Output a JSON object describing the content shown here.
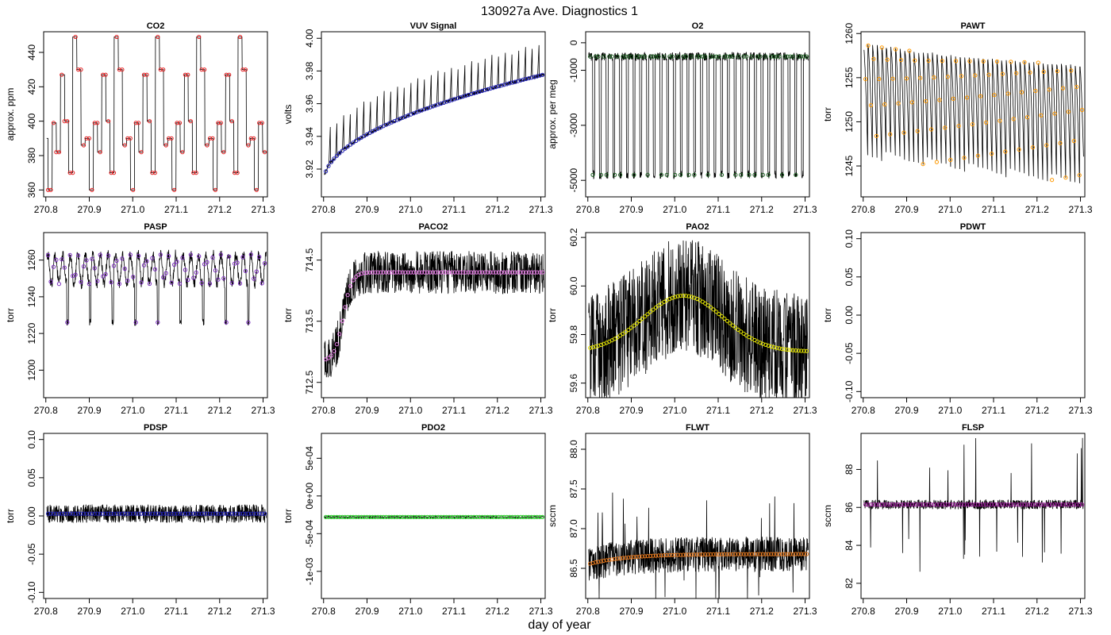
{
  "figure": {
    "title": "130927a   Ave. Diagnostics 1",
    "xlabel": "day of year"
  },
  "chart_data": [
    {
      "type": "line",
      "title": "CO2",
      "ylabel": "approx. ppm",
      "xlim": [
        270.795,
        271.31
      ],
      "ylim": [
        356,
        452
      ],
      "xticks": [
        270.8,
        270.9,
        271.0,
        271.1,
        271.2,
        271.3
      ],
      "xtick_labels": [
        "270.8",
        "270.9",
        "271.0",
        "271.1",
        "271.2",
        "271.3"
      ],
      "yticks": [
        360,
        380,
        400,
        420,
        440
      ],
      "ytick_labels": [
        "360",
        "380",
        "400",
        "420",
        "440"
      ],
      "marker_color": "#e41a1c",
      "pattern": "step",
      "levels": [
        360,
        399,
        382,
        427,
        400,
        370,
        449,
        430,
        386,
        390
      ],
      "noise": 0,
      "spikes": 0
    },
    {
      "type": "line",
      "title": "VUV Signal",
      "ylabel": "volts",
      "xlim": [
        270.795,
        271.31
      ],
      "ylim": [
        3.903,
        4.004
      ],
      "xticks": [
        270.8,
        270.9,
        271.0,
        271.1,
        271.2,
        271.3
      ],
      "xtick_labels": [
        "270.8",
        "270.9",
        "271.0",
        "271.1",
        "271.2",
        "271.3"
      ],
      "yticks": [
        3.92,
        3.94,
        3.96,
        3.98,
        4.0
      ],
      "ytick_labels": [
        "3.92",
        "3.94",
        "3.96",
        "3.98",
        "4.00"
      ],
      "marker_color": "#1f1fb4",
      "pattern": "trend",
      "base": [
        3.912,
        3.978
      ],
      "upper": [
        3.935,
        3.998
      ],
      "noise": 0.002,
      "spikes": 0
    },
    {
      "type": "line",
      "title": "O2",
      "ylabel": "approx. per meg",
      "xlim": [
        270.795,
        271.31
      ],
      "ylim": [
        -5600,
        400
      ],
      "xticks": [
        270.8,
        270.9,
        271.0,
        271.1,
        271.2,
        271.3
      ],
      "xtick_labels": [
        "270.8",
        "270.9",
        "271.0",
        "271.1",
        "271.2",
        "271.3"
      ],
      "yticks": [
        -5000,
        -3000,
        -1000,
        0
      ],
      "ytick_labels": [
        "-5000",
        "-3000",
        "-1000",
        "0"
      ],
      "marker_color": "#1b5e20",
      "pattern": "switch",
      "high": -500,
      "low": -4800,
      "noise": 150,
      "spikes": 0
    },
    {
      "type": "line",
      "title": "PAWT",
      "ylabel": "torr",
      "xlim": [
        270.795,
        271.31
      ],
      "ylim": [
        1241.5,
        1260.2
      ],
      "xticks": [
        270.8,
        270.9,
        271.0,
        271.1,
        271.2,
        271.3
      ],
      "xtick_labels": [
        "270.8",
        "270.9",
        "271.0",
        "271.1",
        "271.2",
        "271.3"
      ],
      "yticks": [
        1245,
        1250,
        1255,
        1260
      ],
      "ytick_labels": [
        "1245",
        "1250",
        "1255",
        "1260"
      ],
      "marker_color": "#ff9900",
      "pattern": "sawtooth",
      "top": 1257.5,
      "bottom_start": 1246,
      "bottom_end": 1242.5,
      "noise": 0.3,
      "spikes": 0
    },
    {
      "type": "line",
      "title": "PASP",
      "ylabel": "torr",
      "xlim": [
        270.795,
        271.31
      ],
      "ylim": [
        1185,
        1275
      ],
      "xticks": [
        270.8,
        270.9,
        271.0,
        271.1,
        271.2,
        271.3
      ],
      "xtick_labels": [
        "270.8",
        "270.9",
        "271.0",
        "271.1",
        "271.2",
        "271.3"
      ],
      "yticks": [
        1200,
        1220,
        1240,
        1260
      ],
      "ytick_labels": [
        "1200",
        "1220",
        "1240",
        "1260"
      ],
      "marker_color": "#7b2cbf",
      "pattern": "periodic",
      "base": 1255,
      "amp": 8,
      "dip": 1226,
      "noise": 1.5,
      "spikes": 0
    },
    {
      "type": "line",
      "title": "PACO2",
      "ylabel": "torr",
      "xlim": [
        270.795,
        271.31
      ],
      "ylim": [
        712.25,
        714.95
      ],
      "xticks": [
        270.8,
        270.9,
        271.0,
        271.1,
        271.2,
        271.3
      ],
      "xtick_labels": [
        "270.8",
        "270.9",
        "271.0",
        "271.1",
        "271.2",
        "271.3"
      ],
      "yticks": [
        712.5,
        713.5,
        714.5
      ],
      "ytick_labels": [
        "712.5",
        "713.5",
        "714.5"
      ],
      "marker_color": "#e87ee8",
      "pattern": "rise",
      "start": 712.85,
      "end": 714.3,
      "noise": 0.35,
      "spikes": 0
    },
    {
      "type": "line",
      "title": "PAO2",
      "ylabel": "torr",
      "xlim": [
        270.795,
        271.31
      ],
      "ylim": [
        59.54,
        60.22
      ],
      "xticks": [
        270.8,
        270.9,
        271.0,
        271.1,
        271.2,
        271.3
      ],
      "xtick_labels": [
        "270.8",
        "270.9",
        "271.0",
        "271.1",
        "271.2",
        "271.3"
      ],
      "yticks": [
        59.6,
        59.8,
        60.0,
        60.2
      ],
      "ytick_labels": [
        "59.6",
        "59.8",
        "60.0",
        "60.2"
      ],
      "marker_color": "#e6e600",
      "pattern": "arch",
      "base": 59.73,
      "peak": 59.96,
      "noise": 0.2,
      "spikes": 0
    },
    {
      "type": "line",
      "title": "PDWT",
      "ylabel": "torr",
      "xlim": [
        270.795,
        271.31
      ],
      "ylim": [
        -0.108,
        0.108
      ],
      "xticks": [
        270.8,
        270.9,
        271.0,
        271.1,
        271.2,
        271.3
      ],
      "xtick_labels": [
        "270.8",
        "270.9",
        "271.0",
        "271.1",
        "271.2",
        "271.3"
      ],
      "yticks": [
        -0.1,
        -0.05,
        0.0,
        0.05,
        0.1
      ],
      "ytick_labels": [
        "-0.10",
        "-0.05",
        "0.00",
        "0.05",
        "0.10"
      ],
      "marker_color": "#000000",
      "pattern": "empty",
      "noise": 0,
      "spikes": 0
    },
    {
      "type": "line",
      "title": "PDSP",
      "ylabel": "torr",
      "xlim": [
        270.795,
        271.31
      ],
      "ylim": [
        -0.108,
        0.108
      ],
      "xticks": [
        270.8,
        270.9,
        271.0,
        271.1,
        271.2,
        271.3
      ],
      "xtick_labels": [
        "270.8",
        "270.9",
        "271.0",
        "271.1",
        "271.2",
        "271.3"
      ],
      "yticks": [
        -0.1,
        -0.05,
        0.0,
        0.05,
        0.1
      ],
      "ytick_labels": [
        "-0.10",
        "-0.05",
        "0.00",
        "0.05",
        "0.10"
      ],
      "marker_color": "#1f1fb4",
      "pattern": "flat",
      "base": 0.003,
      "noise": 0.012,
      "spikes": 0
    },
    {
      "type": "line",
      "title": "PDO2",
      "ylabel": "torr",
      "xlim": [
        270.795,
        271.31
      ],
      "ylim": [
        -0.00136,
        0.00083
      ],
      "xticks": [
        270.8,
        270.9,
        271.0,
        271.1,
        271.2,
        271.3
      ],
      "xtick_labels": [
        "270.8",
        "270.9",
        "271.0",
        "271.1",
        "271.2",
        "271.3"
      ],
      "yticks": [
        -0.001,
        -0.0005,
        0.0,
        0.0005
      ],
      "ytick_labels": [
        "-1e-03",
        "-5e-04",
        "0e+00",
        "5e-04"
      ],
      "marker_color": "#22cc22",
      "pattern": "flat",
      "base": -0.00028,
      "noise": 1e-05,
      "spikes": 0
    },
    {
      "type": "line",
      "title": "FLWT",
      "ylabel": "sccm",
      "xlim": [
        270.795,
        271.31
      ],
      "ylim": [
        86.12,
        88.2
      ],
      "xticks": [
        270.8,
        270.9,
        271.0,
        271.1,
        271.2,
        271.3
      ],
      "xtick_labels": [
        "270.8",
        "270.9",
        "271.0",
        "271.1",
        "271.2",
        "271.3"
      ],
      "yticks": [
        86.5,
        87.0,
        87.5,
        88.0
      ],
      "ytick_labels": [
        "86.5",
        "87.0",
        "87.5",
        "88.0"
      ],
      "marker_color": "#e87a1e",
      "pattern": "rise_soft",
      "start": 86.55,
      "end": 86.68,
      "noise": 0.22,
      "spikes": 1
    },
    {
      "type": "line",
      "title": "FLSP",
      "ylabel": "sccm",
      "xlim": [
        270.795,
        271.31
      ],
      "ylim": [
        81.2,
        89.9
      ],
      "xticks": [
        270.8,
        270.9,
        271.0,
        271.1,
        271.2,
        271.3
      ],
      "xtick_labels": [
        "270.8",
        "270.9",
        "271.0",
        "271.1",
        "271.2",
        "271.3"
      ],
      "yticks": [
        82,
        84,
        86,
        88
      ],
      "ytick_labels": [
        "82",
        "84",
        "86",
        "88"
      ],
      "marker_color": "#9a1b9a",
      "pattern": "flat",
      "base": 86.15,
      "noise": 0.25,
      "spikes": 2
    }
  ]
}
